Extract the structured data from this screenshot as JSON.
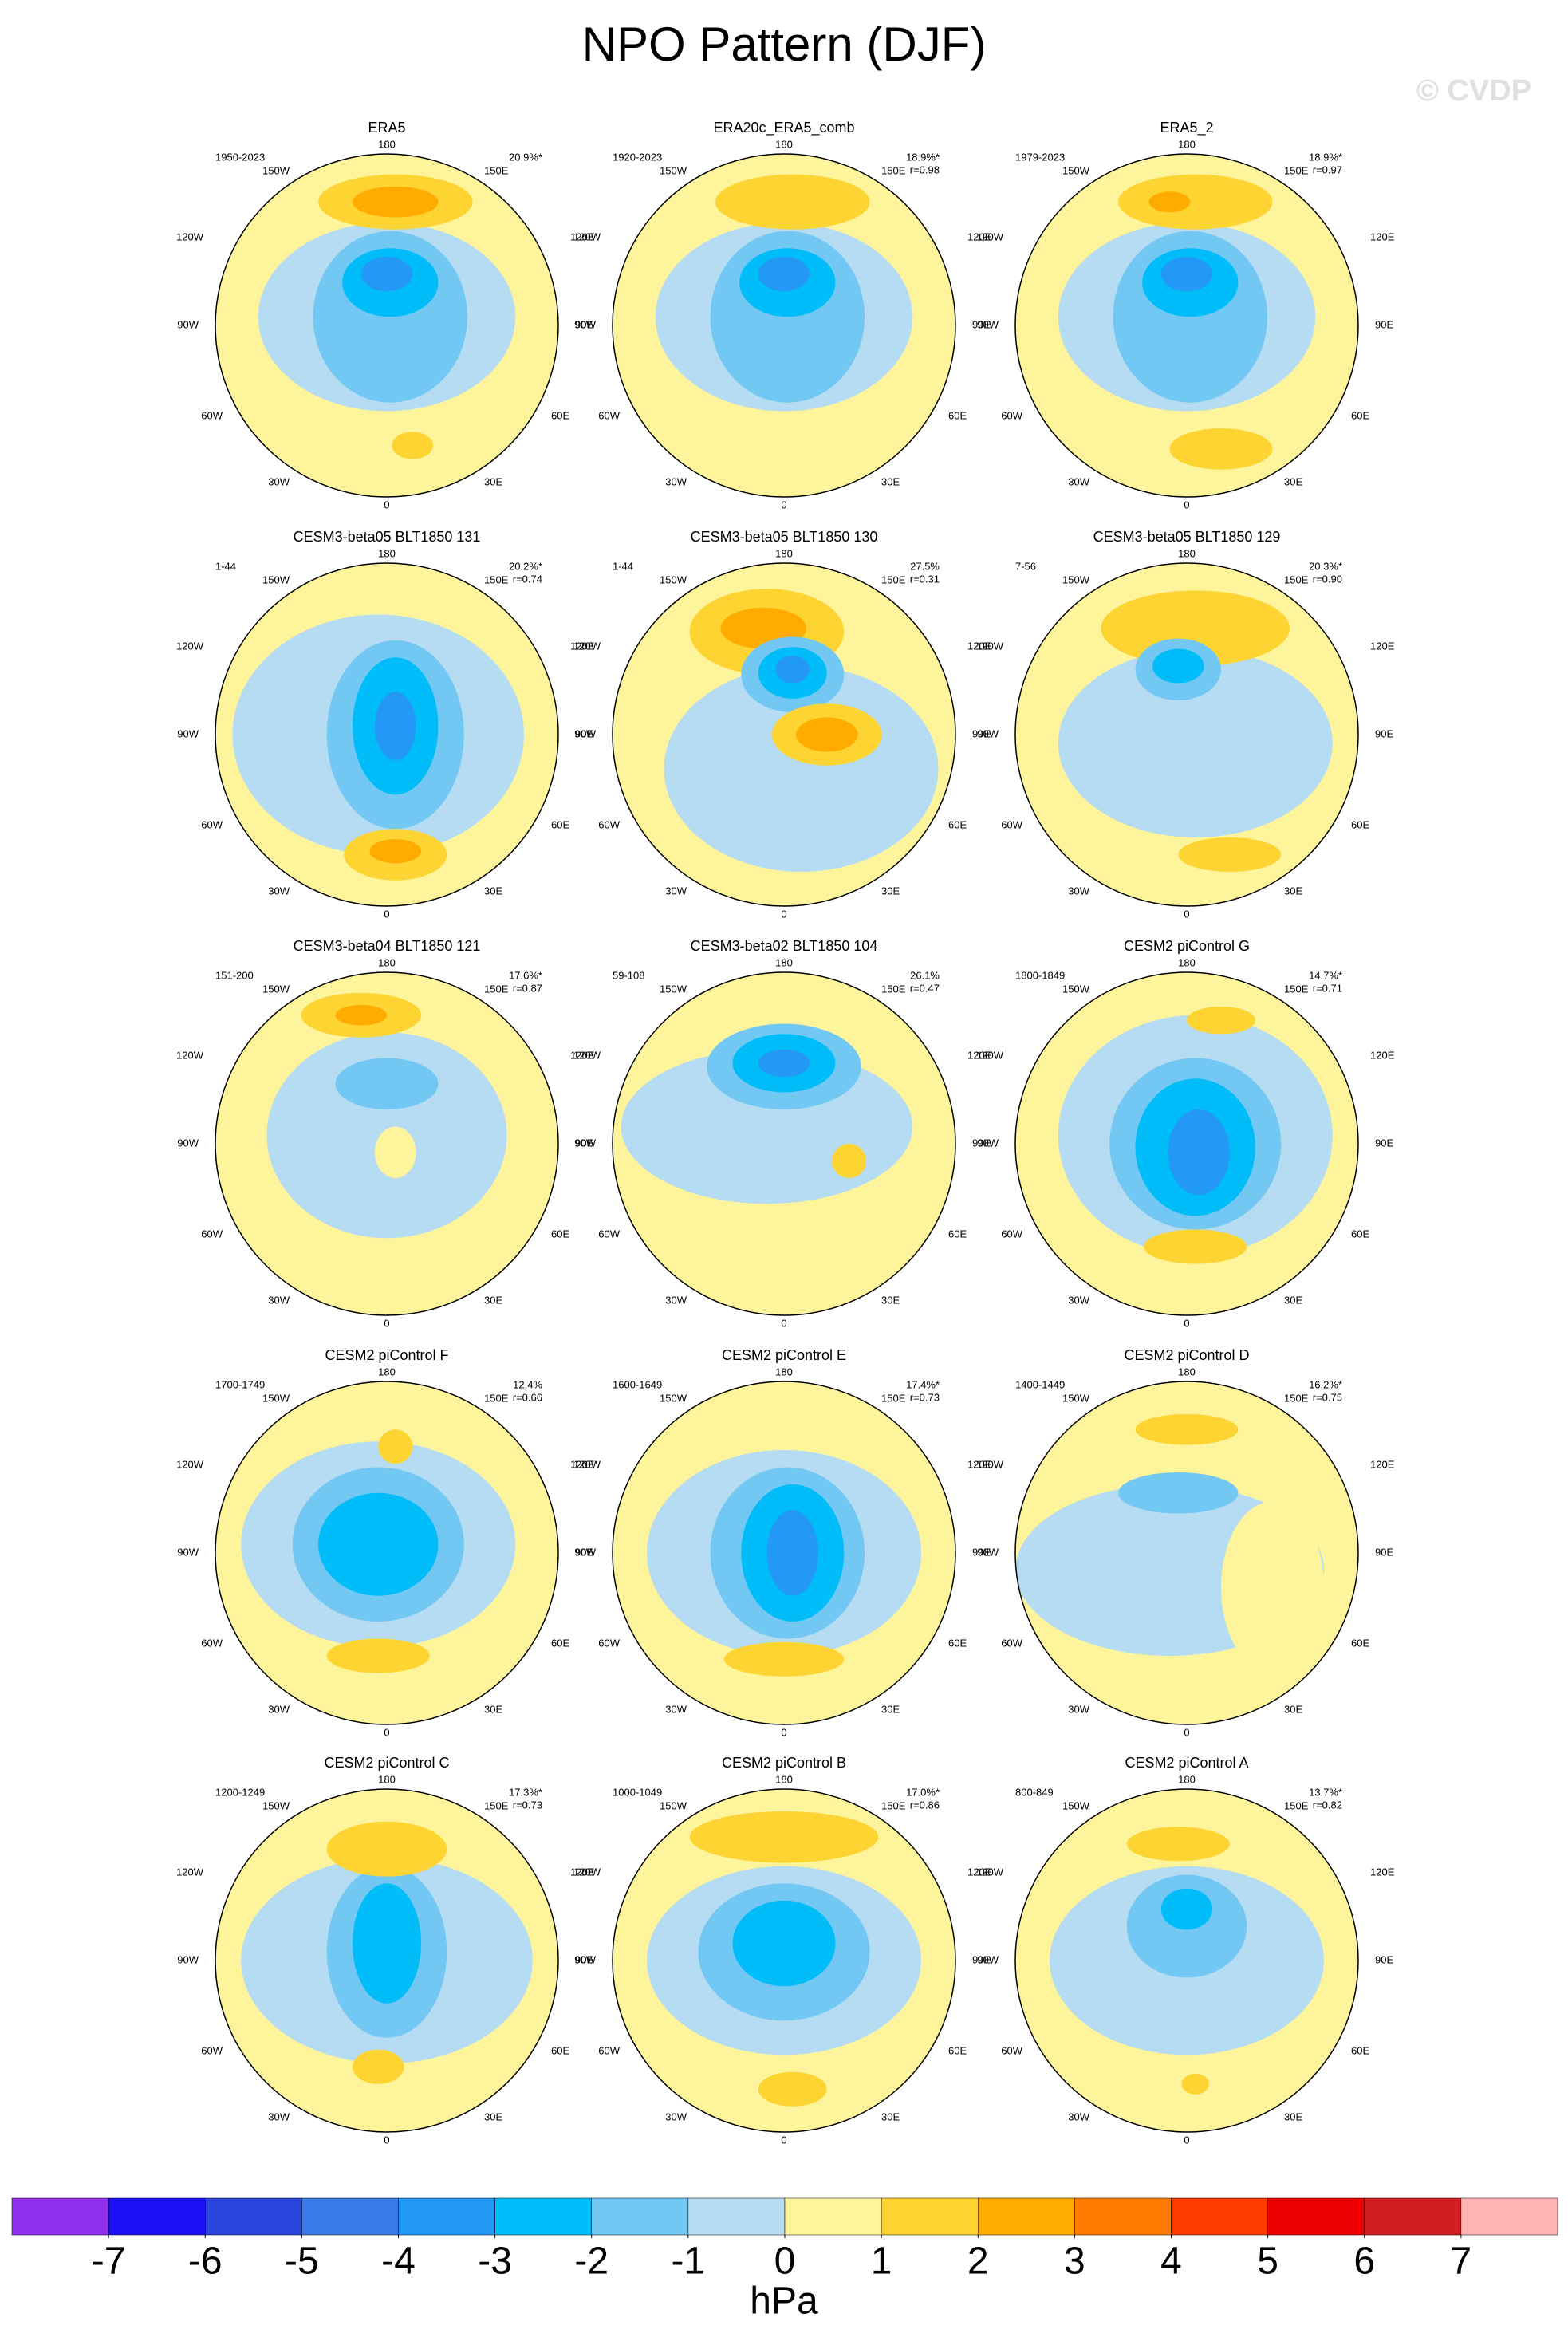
{
  "title": "NPO Pattern (DJF)",
  "watermark": "© CVDP",
  "map_labels": {
    "top": "180",
    "bottom": "0",
    "w150": "150W",
    "w120": "120W",
    "w90": "90W",
    "w60": "60W",
    "w30": "30W",
    "e150": "150E",
    "e120": "120E",
    "e90": "90E",
    "e60": "60E",
    "e30": "30E"
  },
  "panels": [
    {
      "title": "ERA5",
      "period": "1950-2023",
      "pct": "20.9%*"
    },
    {
      "title": "ERA20c_ERA5_comb",
      "period": "1920-2023",
      "pct": "18.9%*",
      "r": "r=0.98"
    },
    {
      "title": "ERA5_2",
      "period": "1979-2023",
      "pct": "18.9%*",
      "r": "r=0.97"
    },
    {
      "title": "CESM3-beta05 BLT1850 131",
      "period": "1-44",
      "pct": "20.2%*",
      "r": "r=0.74"
    },
    {
      "title": "CESM3-beta05 BLT1850 130",
      "period": "1-44",
      "pct": "27.5%",
      "r": "r=0.31"
    },
    {
      "title": "CESM3-beta05 BLT1850 129",
      "period": "7-56",
      "pct": "20.3%*",
      "r": "r=0.90"
    },
    {
      "title": "CESM3-beta04 BLT1850 121",
      "period": "151-200",
      "pct": "17.6%*",
      "r": "r=0.87"
    },
    {
      "title": "CESM3-beta02 BLT1850 104",
      "period": "59-108",
      "pct": "26.1%",
      "r": "r=0.47"
    },
    {
      "title": "CESM2 piControl G",
      "period": "1800-1849",
      "pct": "14.7%*",
      "r": "r=0.71"
    },
    {
      "title": "CESM2 piControl F",
      "period": "1700-1749",
      "pct": "12.4%",
      "r": "r=0.66"
    },
    {
      "title": "CESM2 piControl E",
      "period": "1600-1649",
      "pct": "17.4%*",
      "r": "r=0.73"
    },
    {
      "title": "CESM2 piControl D",
      "period": "1400-1449",
      "pct": "16.2%*",
      "r": "r=0.75"
    },
    {
      "title": "CESM2 piControl C",
      "period": "1200-1249",
      "pct": "17.3%*",
      "r": "r=0.73"
    },
    {
      "title": "CESM2 piControl B",
      "period": "1000-1049",
      "pct": "17.0%*",
      "r": "r=0.86"
    },
    {
      "title": "CESM2 piControl A",
      "period": "800-849",
      "pct": "13.7%*",
      "r": "r=0.82"
    }
  ],
  "colorbar": {
    "label": "hPa",
    "colors": [
      "#9030f0",
      "#1a12f5",
      "#2a46de",
      "#3a7ae8",
      "#2398f5",
      "#00bdfa",
      "#72c8f2",
      "#b5dcf3",
      "#fdf49c",
      "#fdd431",
      "#ffab00",
      "#ff7a00",
      "#ff3c00",
      "#ef0000",
      "#d21e22",
      "#ffb4b4"
    ],
    "ticks": [
      -7,
      -6,
      -5,
      -4,
      -3,
      -2,
      -1,
      0,
      1,
      2,
      3,
      4,
      5,
      6,
      7
    ]
  }
}
